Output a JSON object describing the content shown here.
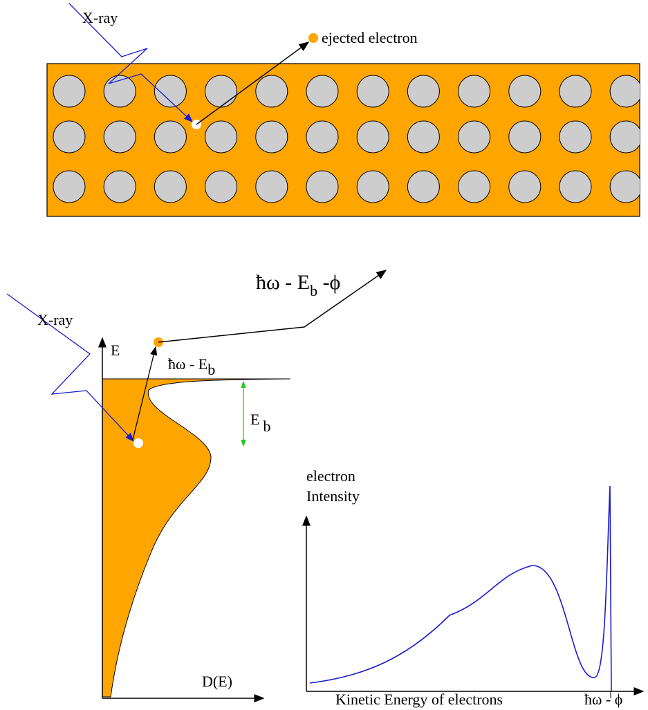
{
  "top": {
    "xray_label": "X-ray",
    "electron_label": "ejected electron"
  },
  "escape": {
    "main": "ħω - E",
    "sub": "b",
    "tail": " -ϕ"
  },
  "dos": {
    "xray_label": "X-ray",
    "y_axis_label": "E",
    "x_axis_label": "D(E)",
    "level": {
      "main": "ħω - E",
      "sub": "b"
    },
    "binding": {
      "main": "E",
      "sub": "b"
    }
  },
  "spectrum": {
    "y_axis_label_1": "electron",
    "y_axis_label_2": "Intensity",
    "x_axis_label": "Kinetic Energy of electrons",
    "edge_label": "ħω - ϕ"
  }
}
